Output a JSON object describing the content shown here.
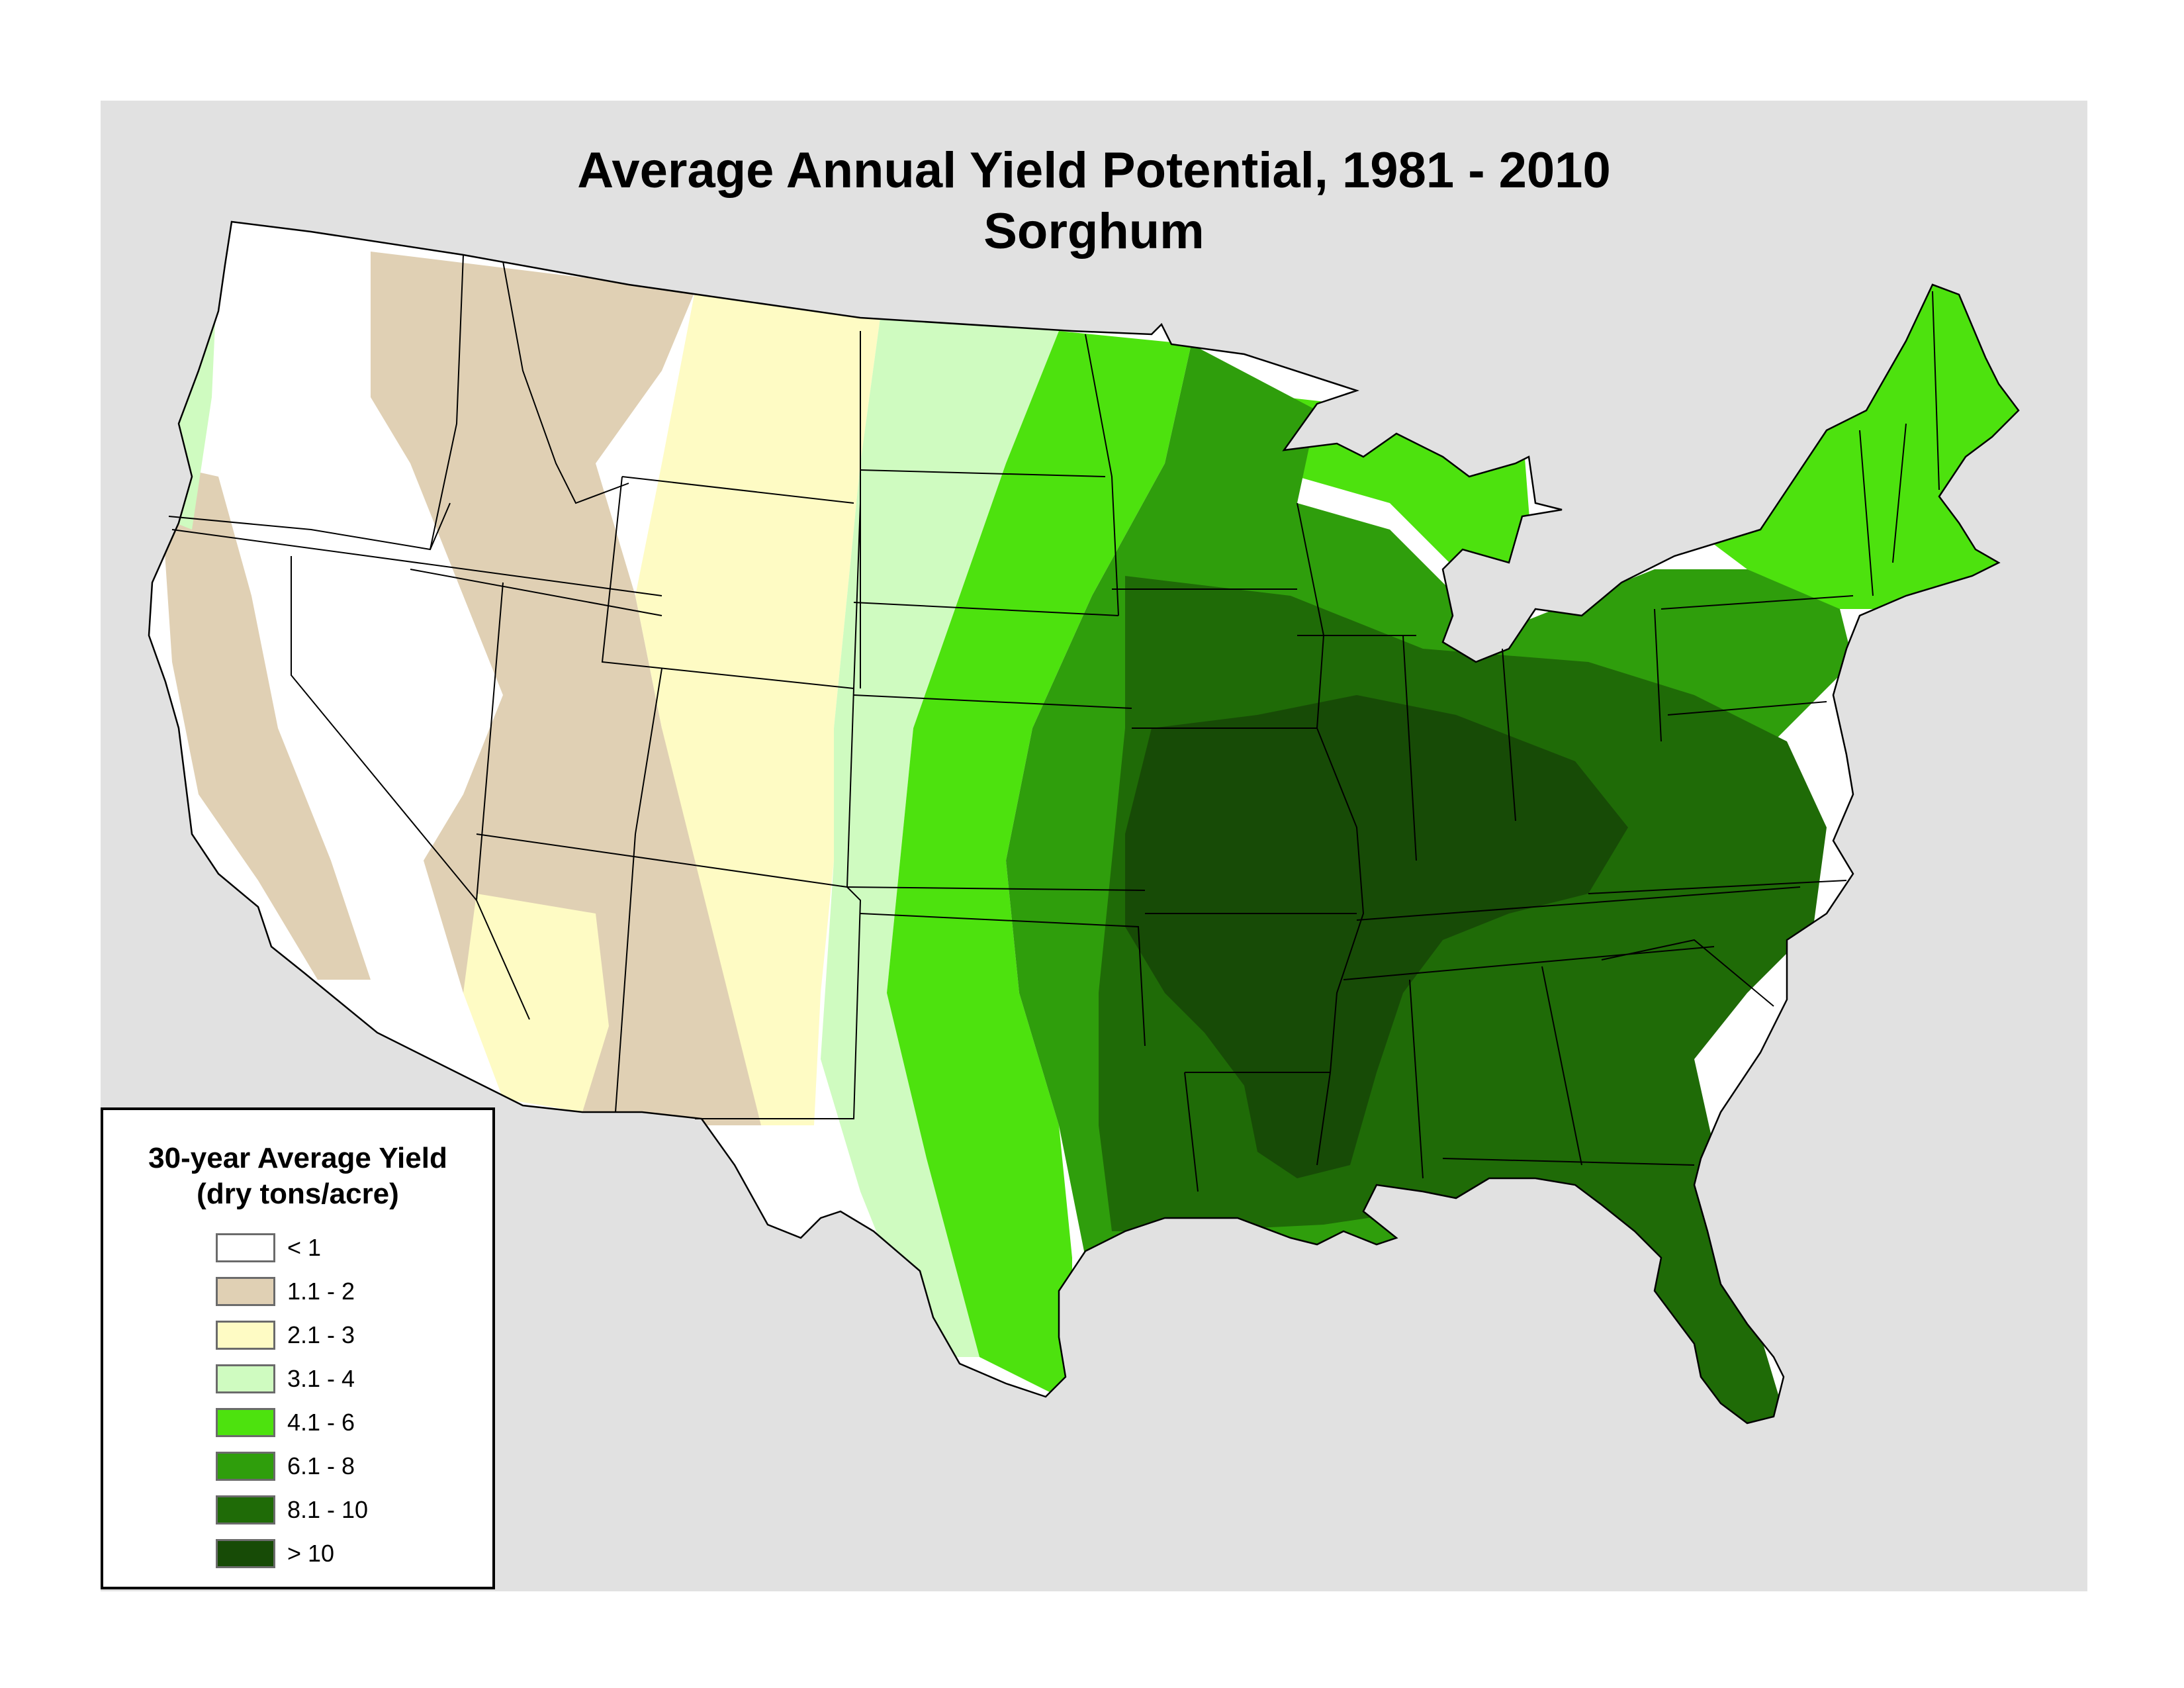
{
  "title": {
    "line1": "Average Annual Yield Potential, 1981 - 2010",
    "line2": "Sorghum"
  },
  "legend": {
    "title_line1": "30-year Average Yield",
    "title_line2": "(dry tons/acre)",
    "classes": [
      {
        "label": "< 1",
        "color": "#ffffff"
      },
      {
        "label": "1.1 - 2",
        "color": "#e0d0b4"
      },
      {
        "label": "2.1 - 3",
        "color": "#fefbc4"
      },
      {
        "label": "3.1 - 4",
        "color": "#cffbc0"
      },
      {
        "label": "4.1 - 6",
        "color": "#4de20e"
      },
      {
        "label": "6.1 - 8",
        "color": "#2f9e0c"
      },
      {
        "label": "8.1 - 10",
        "color": "#1f6b07"
      },
      {
        "label": "> 10",
        "color": "#174b06"
      }
    ]
  },
  "colors": {
    "panel_background": "#e1e1e1",
    "state_boundaries": "#000000"
  }
}
